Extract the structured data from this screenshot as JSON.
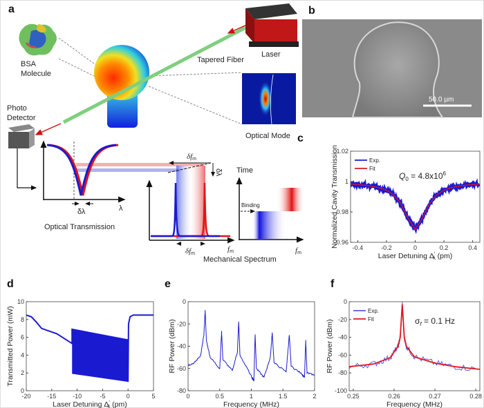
{
  "panel_letters": {
    "a": "a",
    "b": "b",
    "c": "c",
    "d": "d",
    "e": "e",
    "f": "f"
  },
  "schematic": {
    "bsa_label_1": "BSA",
    "bsa_label_2": "Molecule",
    "laser": "Laser",
    "tapered_fiber": "Tapered Fiber",
    "optical_mode": "Optical Mode",
    "photo_1": "Photo",
    "photo_2": "Detector",
    "optical_transmission": "Optical Transmission",
    "lambda": "λ",
    "delta_lambda": "δλ",
    "delta_lambda_vertical": "δλ",
    "delta_fm_top": "δf",
    "delta_fm_bottom": "δf",
    "fm_sub": "m",
    "fm_axis": "f",
    "fm_axis_right": "f",
    "mechanical_spectrum": "Mechanical Spectrum",
    "time": "Time",
    "binding": "Binding",
    "colors": {
      "red": "#e0141e",
      "blue": "#1a1ad0",
      "fiber": "#7fcf7f"
    }
  },
  "sem": {
    "scale_bar": "50.0 µm"
  },
  "chart_data": [
    {
      "id": "c",
      "type": "line",
      "xlabel": "Laser Detuning  Δ",
      "xlabel_sup": "′",
      "xlabel_sub": "λ",
      "xlabel_unit": " (pm)",
      "ylabel": "Normalized Cavity Transmission",
      "xlim": [
        -0.45,
        0.45
      ],
      "ylim": [
        0.96,
        1.02
      ],
      "xticks": [
        -0.4,
        -0.2,
        0,
        0.2,
        0.4
      ],
      "xtick_labels": [
        "-0.4",
        "-0.2",
        "0",
        "0.2",
        "0.4"
      ],
      "yticks": [
        0.96,
        0.98,
        1,
        1.02
      ],
      "ytick_labels": [
        "0.96",
        "0.98",
        "1",
        "1.02"
      ],
      "annotation": {
        "q": "Q",
        "q_sub": "0",
        "eq": " = 4.8x10",
        "exp": "6"
      },
      "legend": "top-left",
      "x": [
        -0.45,
        -0.4,
        -0.35,
        -0.3,
        -0.25,
        -0.2,
        -0.15,
        -0.1,
        -0.05,
        0,
        0.05,
        0.1,
        0.15,
        0.2,
        0.25,
        0.3,
        0.35,
        0.4,
        0.45
      ],
      "series": [
        {
          "name": "Exp.",
          "color": "#1a1ad0",
          "values": [
            0.9983,
            0.998,
            0.9976,
            0.9969,
            0.9959,
            0.9943,
            0.9913,
            0.9856,
            0.9758,
            0.9685,
            0.9758,
            0.9856,
            0.9913,
            0.9943,
            0.9959,
            0.9969,
            0.9976,
            0.998,
            0.9983
          ]
        },
        {
          "name": "Fit",
          "color": "#e0141e",
          "values": [
            0.9983,
            0.998,
            0.9976,
            0.9969,
            0.9959,
            0.9943,
            0.9913,
            0.9856,
            0.9758,
            0.9685,
            0.9758,
            0.9856,
            0.9913,
            0.9943,
            0.9959,
            0.9969,
            0.9976,
            0.998,
            0.9983
          ]
        }
      ]
    },
    {
      "id": "d",
      "type": "line",
      "xlabel": "Laser Detuning  Δ",
      "xlabel_sup": "′",
      "xlabel_sub": "λ",
      "xlabel_unit": " (pm)",
      "ylabel": "Transmitted Power (mW)",
      "xlim": [
        -20,
        5
      ],
      "ylim": [
        0,
        10
      ],
      "xticks": [
        -20,
        -15,
        -10,
        -5,
        0,
        5
      ],
      "xtick_labels": [
        "-20",
        "-15",
        "-10",
        "-5",
        "0",
        "5"
      ],
      "yticks": [
        0,
        2,
        4,
        6,
        8,
        10
      ],
      "ytick_labels": [
        "0",
        "2",
        "4",
        "6",
        "8",
        "10"
      ],
      "series": [
        {
          "color": "#1a1ad0",
          "points": [
            [
              -20,
              8.5
            ],
            [
              -19,
              8.3
            ],
            [
              -18,
              7.7
            ],
            [
              -17,
              7.0
            ],
            [
              -16,
              6.8
            ],
            [
              -14,
              6.4
            ],
            [
              -11,
              5.3
            ],
            [
              -11,
              6.9
            ],
            [
              0,
              5.7
            ],
            [
              0,
              1.0
            ],
            [
              0.1,
              7.5
            ],
            [
              0.4,
              8.3
            ],
            [
              1,
              8.5
            ],
            [
              5,
              8.5
            ]
          ]
        }
      ],
      "oscillation_band": {
        "x": [
          -11,
          0
        ],
        "upper": [
          6.9,
          5.7
        ],
        "lower": [
          1.9,
          1.0
        ]
      }
    },
    {
      "id": "e",
      "type": "line",
      "xlabel": "Frequency (MHz)",
      "ylabel": "RF Power (dBm)",
      "xlim": [
        0,
        2
      ],
      "ylim": [
        -80,
        0
      ],
      "xticks": [
        0,
        0.5,
        1,
        1.5,
        2
      ],
      "xtick_labels": [
        "0",
        "0.5",
        "1",
        "1.5",
        "2"
      ],
      "yticks": [
        -80,
        -60,
        -40,
        -20,
        0
      ],
      "ytick_labels": [
        "-80",
        "-60",
        "-40",
        "-20",
        "0"
      ],
      "series": [
        {
          "color": "#1a1ad0",
          "points": [
            [
              0,
              -57
            ],
            [
              0.1,
              -55
            ],
            [
              0.2,
              -48
            ],
            [
              0.25,
              -30
            ],
            [
              0.27,
              -8
            ],
            [
              0.29,
              -35
            ],
            [
              0.35,
              -50
            ],
            [
              0.5,
              -60
            ],
            [
              0.53,
              -27
            ],
            [
              0.55,
              -52
            ],
            [
              0.7,
              -62
            ],
            [
              0.78,
              -45
            ],
            [
              0.8,
              -18
            ],
            [
              0.82,
              -48
            ],
            [
              1.0,
              -67
            ],
            [
              1.04,
              -71
            ],
            [
              1.06,
              -29
            ],
            [
              1.08,
              -60
            ],
            [
              1.2,
              -68
            ],
            [
              1.3,
              -50
            ],
            [
              1.33,
              -28
            ],
            [
              1.36,
              -55
            ],
            [
              1.55,
              -63
            ],
            [
              1.6,
              -30
            ],
            [
              1.63,
              -58
            ],
            [
              1.8,
              -65
            ],
            [
              1.84,
              -68
            ],
            [
              1.86,
              -35
            ],
            [
              1.88,
              -64
            ],
            [
              2,
              -66
            ]
          ]
        }
      ]
    },
    {
      "id": "f",
      "type": "line",
      "xlabel": "Frequency (MHz)",
      "ylabel": "RF Power (dBm)",
      "xlim": [
        0.249,
        0.281
      ],
      "ylim": [
        -100,
        0
      ],
      "xticks": [
        0.25,
        0.26,
        0.27,
        0.28
      ],
      "xtick_labels": [
        "0.25",
        "0.26",
        "0.27",
        "0.28"
      ],
      "yticks": [
        -100,
        -80,
        -60,
        -40,
        -20,
        0
      ],
      "ytick_labels": [
        "-100",
        "-80",
        "-60",
        "-40",
        "-20",
        "0"
      ],
      "annotation": {
        "sigma": "σ",
        "sigma_sub": "f",
        "eq": " = 0.1 Hz"
      },
      "legend": "top-left",
      "series": [
        {
          "name": "Exp.",
          "color": "#5a5ae0",
          "points": [
            [
              0.249,
              -73
            ],
            [
              0.255,
              -70
            ],
            [
              0.259,
              -63
            ],
            [
              0.261,
              -50
            ],
            [
              0.2615,
              -40
            ],
            [
              0.262,
              -3
            ],
            [
              0.2625,
              -40
            ],
            [
              0.263,
              -50
            ],
            [
              0.265,
              -62
            ],
            [
              0.27,
              -69
            ],
            [
              0.275,
              -73
            ],
            [
              0.281,
              -76
            ]
          ]
        },
        {
          "name": "Fit",
          "color": "#e0141e",
          "points": [
            [
              0.249,
              -73
            ],
            [
              0.255,
              -70
            ],
            [
              0.259,
              -63
            ],
            [
              0.261,
              -50
            ],
            [
              0.2615,
              -40
            ],
            [
              0.262,
              -3
            ],
            [
              0.2625,
              -40
            ],
            [
              0.263,
              -50
            ],
            [
              0.265,
              -62
            ],
            [
              0.27,
              -69
            ],
            [
              0.275,
              -73
            ],
            [
              0.281,
              -76
            ]
          ]
        }
      ]
    }
  ]
}
